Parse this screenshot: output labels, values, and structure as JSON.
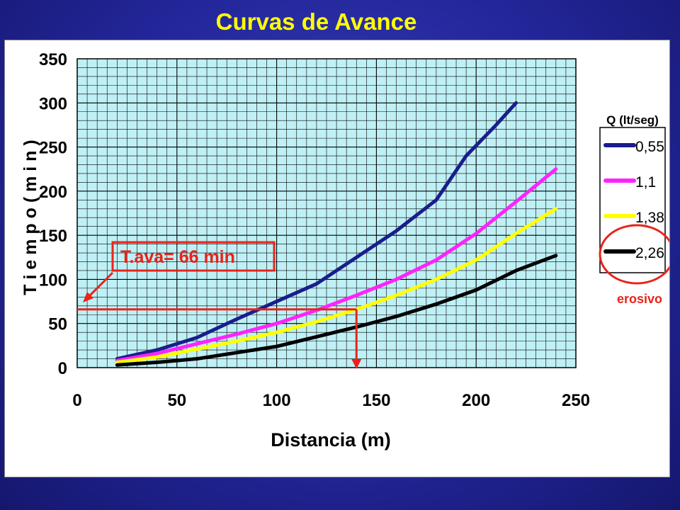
{
  "title": "Curvas de Avance",
  "annotation": {
    "label": "T.ava= 66 min",
    "time": 66,
    "distance": 140
  },
  "erosive_label": "erosivo",
  "colors": {
    "background": "#23269a",
    "title": "#ffff00",
    "plot_area": "#bff0f5",
    "annotation": "#e8231b",
    "series": [
      "#1a1d8c",
      "#ff22ff",
      "#ffff00",
      "#000000"
    ]
  },
  "chart_data": {
    "type": "line",
    "title": "Curvas de Avance",
    "xlabel": "Distancia (m)",
    "ylabel": "T i e m p o  ( m i n )",
    "xlim": [
      0,
      250
    ],
    "ylim": [
      0,
      350
    ],
    "xticks": [
      "0",
      "50",
      "100",
      "150",
      "200",
      "250"
    ],
    "yticks": [
      "0",
      "50",
      "100",
      "150",
      "200",
      "250",
      "300",
      "350"
    ],
    "grid": true,
    "legend": {
      "title": "Q (lt/seg)",
      "position": "right"
    },
    "series": [
      {
        "name": "0,55",
        "x": [
          20,
          40,
          60,
          80,
          100,
          120,
          140,
          160,
          180,
          195,
          210,
          220
        ],
        "y": [
          10,
          20,
          34,
          55,
          75,
          95,
          125,
          155,
          190,
          240,
          275,
          300
        ]
      },
      {
        "name": "1,1",
        "x": [
          20,
          40,
          60,
          80,
          100,
          120,
          140,
          160,
          180,
          200,
          220,
          240
        ],
        "y": [
          8,
          16,
          27,
          38,
          50,
          65,
          82,
          100,
          122,
          152,
          188,
          225
        ]
      },
      {
        "name": "1,38",
        "x": [
          20,
          40,
          60,
          80,
          100,
          120,
          140,
          160,
          180,
          200,
          220,
          240
        ],
        "y": [
          6,
          12,
          21,
          30,
          40,
          52,
          66,
          82,
          100,
          122,
          152,
          180
        ]
      },
      {
        "name": "2,26",
        "x": [
          20,
          40,
          60,
          80,
          100,
          120,
          140,
          160,
          180,
          200,
          220,
          240
        ],
        "y": [
          3,
          6,
          10,
          17,
          24,
          35,
          46,
          58,
          72,
          88,
          110,
          127
        ]
      }
    ]
  }
}
